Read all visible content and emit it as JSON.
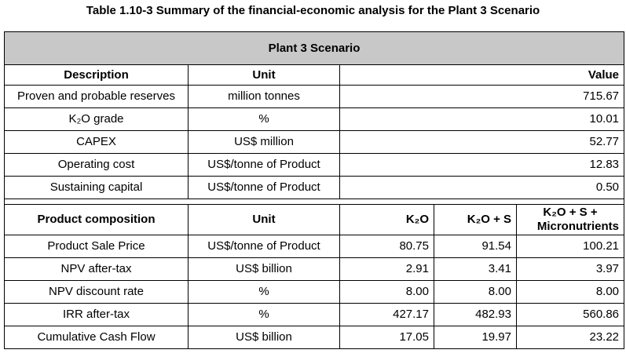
{
  "caption": "Table 1.10-3 Summary of the financial-economic analysis for the Plant 3 Scenario",
  "band_title": "Plant 3 Scenario",
  "section1": {
    "headers": {
      "description": "Description",
      "unit": "Unit",
      "value": "Value"
    },
    "rows": [
      {
        "description": "Proven and probable reserves",
        "unit": "million tonnes",
        "value": "715.67"
      },
      {
        "description": "K₂O grade",
        "unit": "%",
        "value": "10.01"
      },
      {
        "description": "CAPEX",
        "unit": "US$ million",
        "value": "52.77"
      },
      {
        "description": "Operating cost",
        "unit": "US$/tonne of Product",
        "value": "12.83"
      },
      {
        "description": "Sustaining capital",
        "unit": "US$/tonne of Product",
        "value": "0.50"
      }
    ]
  },
  "section2": {
    "headers": {
      "composition": "Product composition",
      "unit": "Unit",
      "k2o": "K₂O",
      "k2o_s": "K₂O + S",
      "k2o_s_micro_line1": "K₂O + S +",
      "k2o_s_micro_line2": "Micronutrients"
    },
    "rows": [
      {
        "composition": "Product Sale Price",
        "unit": "US$/tonne of Product",
        "k2o": "80.75",
        "k2o_s": "91.54",
        "k2o_s_micro": "100.21"
      },
      {
        "composition": "NPV after-tax",
        "unit": "US$ billion",
        "k2o": "2.91",
        "k2o_s": "3.41",
        "k2o_s_micro": "3.97"
      },
      {
        "composition": "NPV discount rate",
        "unit": "%",
        "k2o": "8.00",
        "k2o_s": "8.00",
        "k2o_s_micro": "8.00"
      },
      {
        "composition": "IRR after-tax",
        "unit": "%",
        "k2o": "427.17",
        "k2o_s": "482.93",
        "k2o_s_micro": "560.86"
      },
      {
        "composition": "Cumulative Cash Flow",
        "unit": "US$ billion",
        "k2o": "17.05",
        "k2o_s": "19.97",
        "k2o_s_micro": "23.22"
      }
    ]
  }
}
